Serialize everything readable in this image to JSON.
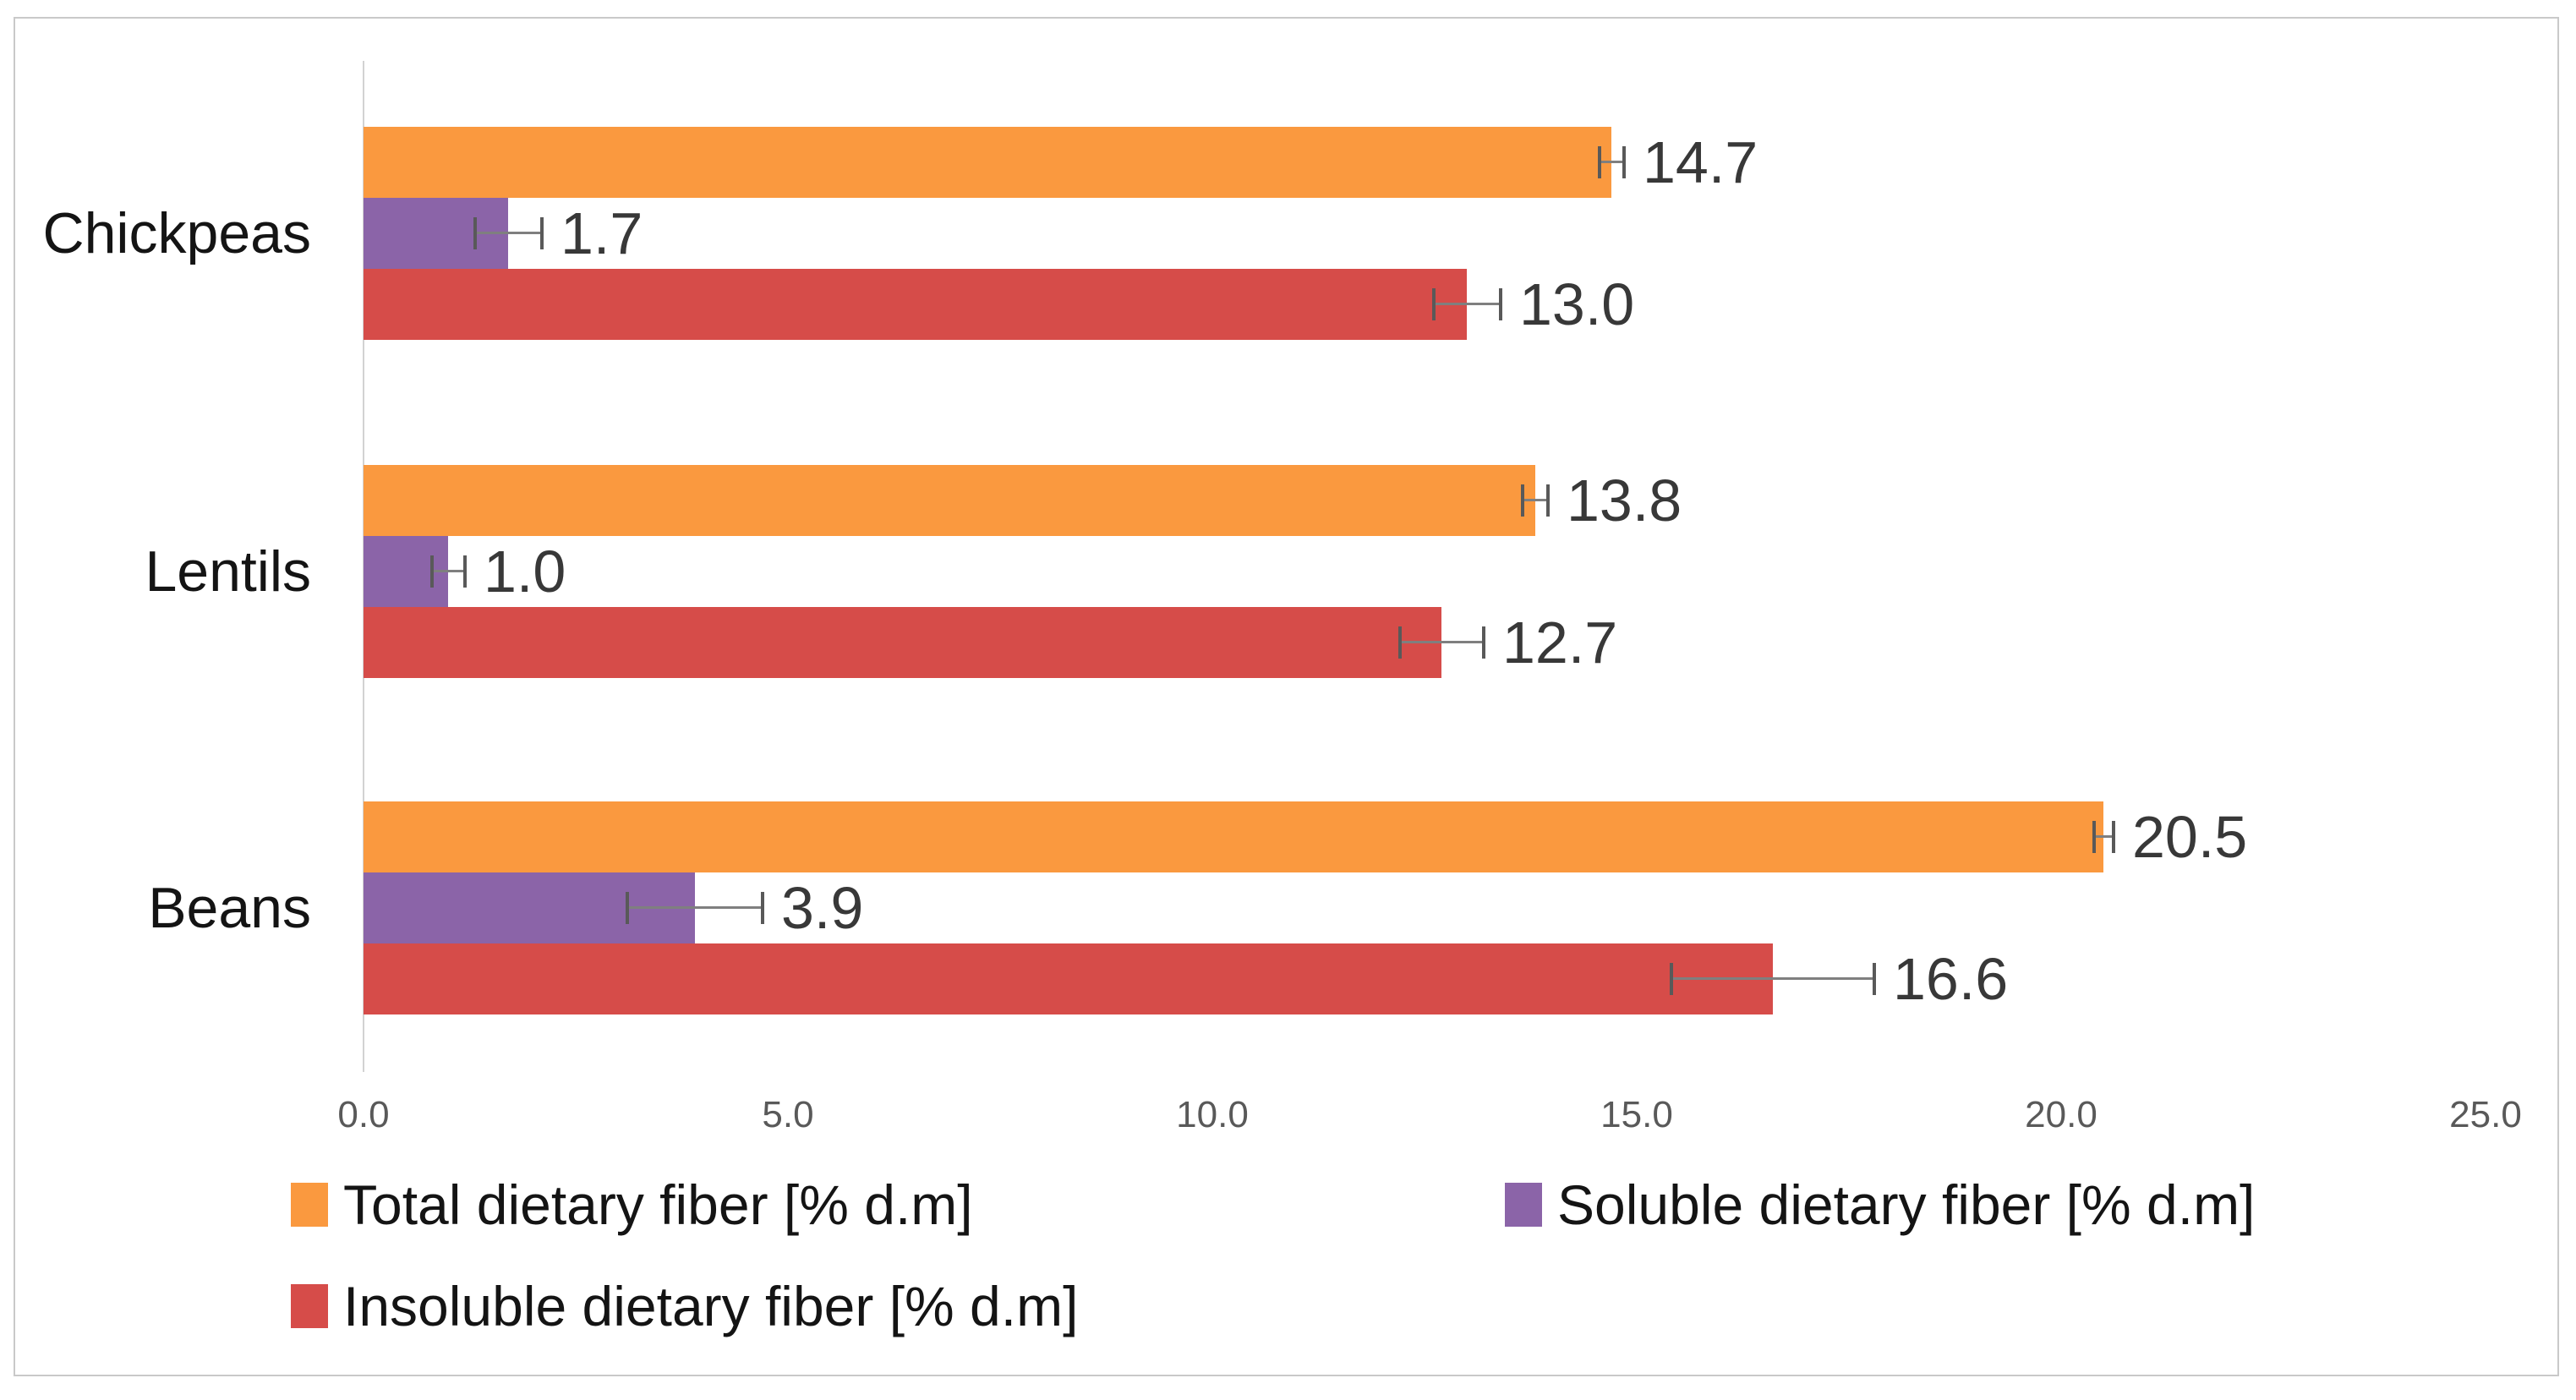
{
  "figure": {
    "background": "#FFFFFF",
    "border_color": "#C9C9C9",
    "axis_line_color": "#D2D2D2",
    "error_bar_line_color": "#7F7F7F",
    "error_bar_cap_color": "#595959",
    "tick_label_color": "#595959",
    "value_label_color": "#383838"
  },
  "chart_data": {
    "type": "bar",
    "orientation": "horizontal",
    "title": "",
    "xlabel": "",
    "ylabel": "",
    "grid": false,
    "legend_position": "bottom",
    "xlim": [
      0,
      25
    ],
    "x_ticks": [
      0,
      5,
      10,
      15,
      20,
      25
    ],
    "x_tick_labels": [
      "0.0",
      "5.0",
      "10.0",
      "15.0",
      "20.0",
      "25.0"
    ],
    "categories": [
      "Chickpeas",
      "Lentils",
      "Beans"
    ],
    "series": [
      {
        "name": "Total dietary fiber [% d.m]",
        "color": "#FA993F",
        "values": [
          14.7,
          13.8,
          20.5
        ],
        "labels": [
          "14.7",
          "13.8",
          "20.5"
        ],
        "error_bars": [
          0.15,
          0.15,
          0.12
        ]
      },
      {
        "name": "Soluble dietary fiber [% d.m]",
        "color": "#8B64A8",
        "values": [
          1.7,
          1.0,
          3.9
        ],
        "labels": [
          "1.7",
          "1.0",
          "3.9"
        ],
        "error_bars": [
          0.4,
          0.2,
          0.8
        ]
      },
      {
        "name": "Insoluble dietary fiber [% d.m]",
        "color": "#D64C49",
        "values": [
          13.0,
          12.7,
          16.6
        ],
        "labels": [
          "13.0",
          "12.7",
          "16.6"
        ],
        "error_bars": [
          0.4,
          0.5,
          1.2
        ]
      }
    ],
    "legend_rows": [
      [
        0,
        1
      ],
      [
        2
      ]
    ]
  }
}
